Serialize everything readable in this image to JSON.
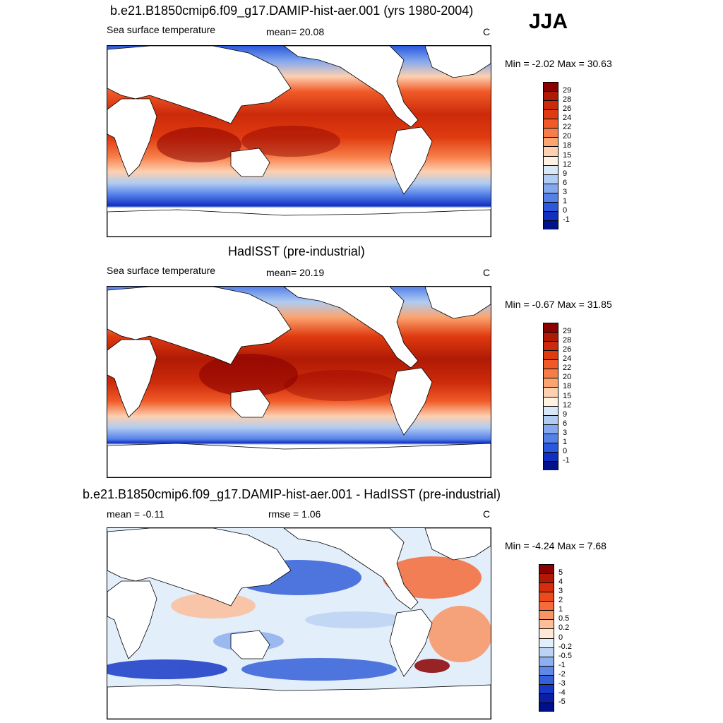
{
  "season": "JJA",
  "panels": [
    {
      "title": "b.e21.B1850cmip6.f09_g17.DAMIP-hist-aer.001 (yrs 1980-2004)",
      "left_label": "Sea surface temperature",
      "stat_label": "mean=  20.08",
      "units": "C",
      "minmax": "Min =  -2.02 Max =  30.63",
      "colorbar_labels": [
        "29",
        "28",
        "26",
        "24",
        "22",
        "20",
        "18",
        "15",
        "12",
        "9",
        "6",
        "3",
        "1",
        "0",
        "-1"
      ],
      "colorbar_colors": [
        "#8b0000",
        "#b01a05",
        "#cc2a0a",
        "#e03b10",
        "#f05a28",
        "#f77d48",
        "#fba46f",
        "#fdd0b0",
        "#fff2e0",
        "#d8e8f8",
        "#b0ccf2",
        "#84a8ee",
        "#5580e8",
        "#2b58dc",
        "#1030c0",
        "#00128a"
      ]
    },
    {
      "title": "HadISST (pre-industrial)",
      "left_label": "Sea surface temperature",
      "stat_label": "mean=  20.19",
      "units": "C",
      "minmax": "Min =  -0.67 Max =  31.85",
      "colorbar_labels": [
        "29",
        "28",
        "26",
        "24",
        "22",
        "20",
        "18",
        "15",
        "12",
        "9",
        "6",
        "3",
        "1",
        "0",
        "-1"
      ],
      "colorbar_colors": [
        "#8b0000",
        "#b01a05",
        "#cc2a0a",
        "#e03b10",
        "#f05a28",
        "#f77d48",
        "#fba46f",
        "#fdd0b0",
        "#fff2e0",
        "#d8e8f8",
        "#b0ccf2",
        "#84a8ee",
        "#5580e8",
        "#2b58dc",
        "#1030c0",
        "#00128a"
      ]
    },
    {
      "title": "b.e21.B1850cmip6.f09_g17.DAMIP-hist-aer.001 - HadISST (pre-industrial)",
      "left_label": "mean =  -0.11",
      "stat_label": "rmse =   1.06",
      "units": "C",
      "minmax": "Min =  -4.24 Max =   7.68",
      "colorbar_labels": [
        "5",
        "4",
        "3",
        "2",
        "1",
        "0.5",
        "0.2",
        "0",
        "-0.2",
        "-0.5",
        "-1",
        "-2",
        "-3",
        "-4",
        "-5"
      ],
      "colorbar_colors": [
        "#8b0000",
        "#b01a05",
        "#d52e0c",
        "#ea4a1c",
        "#f56b3a",
        "#f99464",
        "#fcbf9a",
        "#fee8d8",
        "#e2eefa",
        "#bcd3f4",
        "#8fb0ee",
        "#6088e6",
        "#3560da",
        "#1638c6",
        "#0a1ea6",
        "#00108a"
      ]
    }
  ]
}
